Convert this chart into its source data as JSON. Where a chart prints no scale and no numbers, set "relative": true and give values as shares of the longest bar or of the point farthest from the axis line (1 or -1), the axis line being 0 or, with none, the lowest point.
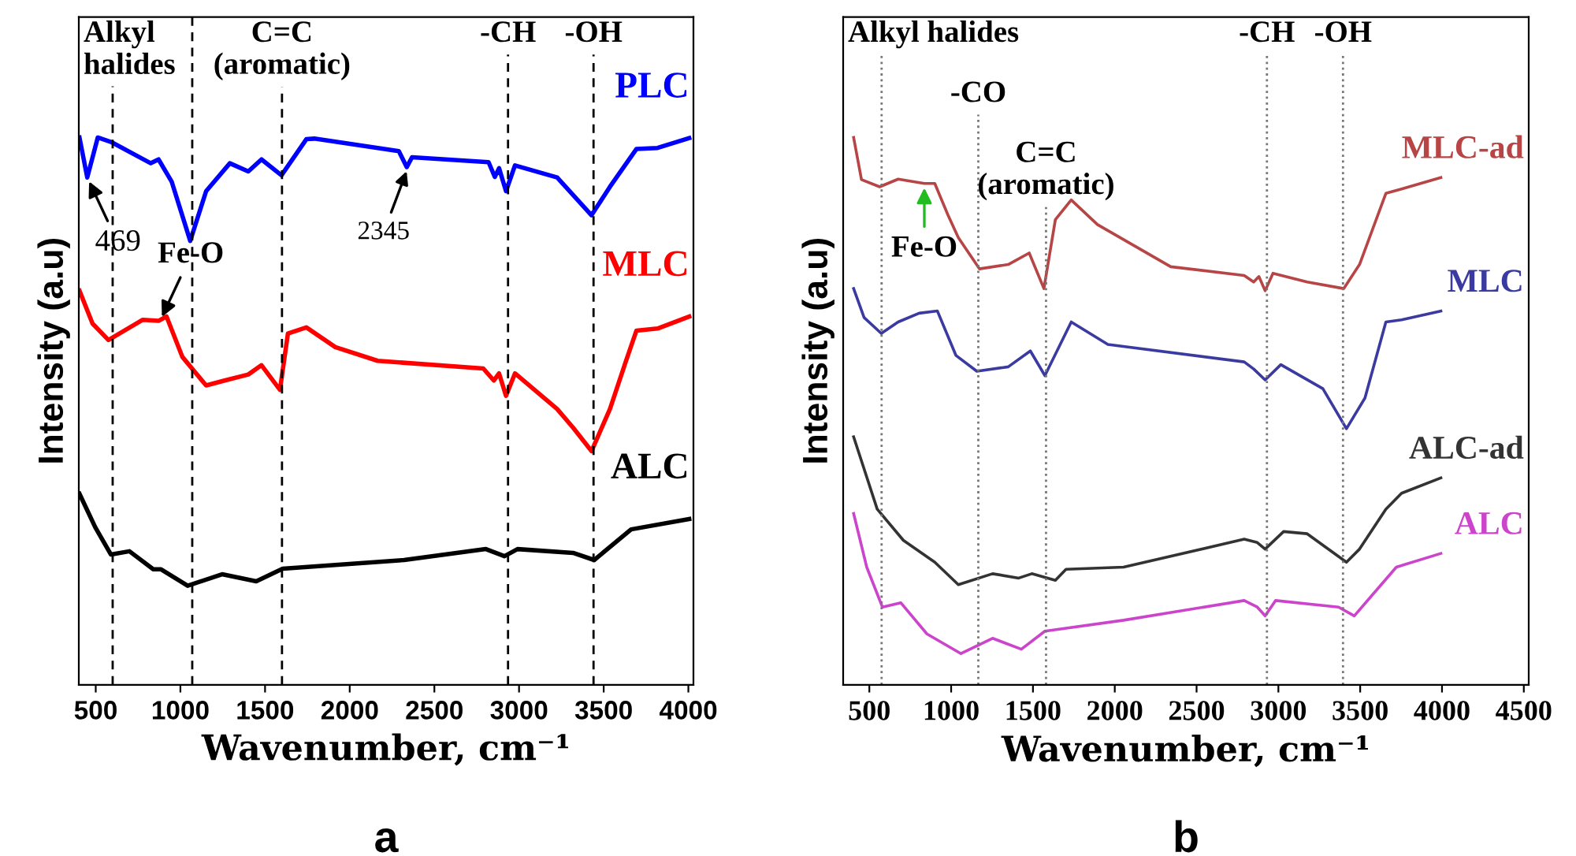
{
  "chart_data": [
    {
      "type": "line",
      "title": "a",
      "xlabel": "Wavenumber, cm⁻¹",
      "ylabel": "Intensity (a.u)",
      "relative": true,
      "tick_labels": "x",
      "grid": false,
      "legend": false,
      "marker": "none",
      "line_style": "solid",
      "xlim": [
        400,
        4030
      ],
      "xticks": [
        500,
        1000,
        1500,
        2000,
        2500,
        3000,
        3500,
        4000
      ],
      "series": [
        {
          "name": "PLC",
          "color": "#0000ff",
          "x": [
            404,
            450,
            512,
            590,
            825,
            871,
            949,
            1058,
            1152,
            1292,
            1401,
            1479,
            1597,
            1744,
            1791,
            2290,
            2337,
            2368,
            2820,
            2857,
            2882,
            2923,
            2976,
            3225,
            3428,
            3537,
            3693,
            3818,
            4005
          ],
          "values": [
            1.0,
            0.927,
            1.0,
            0.992,
            0.953,
            0.96,
            0.919,
            0.811,
            0.902,
            0.953,
            0.938,
            0.96,
            0.931,
            0.997,
            0.998,
            0.975,
            0.946,
            0.964,
            0.955,
            0.928,
            0.944,
            0.902,
            0.949,
            0.927,
            0.858,
            0.91,
            0.979,
            0.981,
            0.999
          ]
        },
        {
          "name": "MLC",
          "color": "#ff0000",
          "x": [
            404,
            481,
            575,
            778,
            871,
            918,
            1012,
            1152,
            1261,
            1401,
            1479,
            1588,
            1635,
            1744,
            1915,
            2165,
            2789,
            2851,
            2882,
            2923,
            2976,
            3225,
            3319,
            3428,
            3537,
            3631,
            3693,
            3818,
            4005
          ],
          "values": [
            0.72,
            0.66,
            0.63,
            0.667,
            0.665,
            0.673,
            0.599,
            0.547,
            0.556,
            0.567,
            0.584,
            0.539,
            0.642,
            0.653,
            0.617,
            0.592,
            0.578,
            0.556,
            0.569,
            0.528,
            0.569,
            0.504,
            0.47,
            0.427,
            0.504,
            0.591,
            0.647,
            0.651,
            0.673
          ]
        },
        {
          "name": "ALC",
          "color": "#000000",
          "x": [
            404,
            497,
            590,
            699,
            840,
            886,
            1043,
            1246,
            1448,
            1604,
            2321,
            2804,
            2914,
            2991,
            3319,
            3444,
            3662,
            4005
          ],
          "values": [
            0.349,
            0.288,
            0.238,
            0.244,
            0.211,
            0.211,
            0.181,
            0.202,
            0.189,
            0.212,
            0.228,
            0.248,
            0.235,
            0.248,
            0.241,
            0.228,
            0.284,
            0.303
          ]
        }
      ],
      "ref_lines": [
        {
          "axis": "x",
          "value": 600,
          "label": "Alkyl\nhalides",
          "color": "#000000",
          "line_style": "dashed"
        },
        {
          "axis": "x",
          "value": 1070,
          "color": "#000000",
          "line_style": "dashed"
        },
        {
          "axis": "x",
          "value": 1600,
          "label": "C=C\n(aromatic)",
          "color": "#000000",
          "line_style": "dashed"
        },
        {
          "axis": "x",
          "value": 2935,
          "label": "-CH",
          "color": "#000000",
          "line_style": "dashed"
        },
        {
          "axis": "x",
          "value": 3440,
          "label": "-OH",
          "color": "#000000",
          "line_style": "dashed"
        }
      ],
      "annotations": [
        {
          "text": "469",
          "x": 450,
          "y": 0.927
        },
        {
          "text": "2345",
          "x": 2345,
          "y": 0.946
        },
        {
          "text": "Fe-O",
          "x": 880,
          "y": 0.665
        }
      ]
    },
    {
      "type": "line",
      "title": "b",
      "xlabel": "Wavenumber, cm⁻¹",
      "ylabel": "Intensity (a.u)",
      "relative": true,
      "tick_labels": "x",
      "grid": false,
      "legend": false,
      "marker": "none",
      "line_style": "solid",
      "xlim": [
        340,
        4530
      ],
      "xticks": [
        500,
        1000,
        1500,
        2000,
        2500,
        3000,
        3500,
        4000,
        4500
      ],
      "series": [
        {
          "name": "MLC-ad",
          "color": "#b84545",
          "x": [
            404,
            452,
            563,
            676,
            836,
            900,
            981,
            1044,
            1173,
            1349,
            1477,
            1567,
            1637,
            1734,
            1894,
            2342,
            2791,
            2849,
            2881,
            2919,
            2967,
            3176,
            3400,
            3496,
            3657,
            3753,
            3993
          ],
          "values": [
            1.0,
            0.923,
            0.91,
            0.924,
            0.916,
            0.916,
            0.858,
            0.817,
            0.76,
            0.768,
            0.789,
            0.724,
            0.85,
            0.886,
            0.841,
            0.764,
            0.748,
            0.736,
            0.746,
            0.72,
            0.752,
            0.736,
            0.724,
            0.768,
            0.898,
            0.906,
            0.927
          ]
        },
        {
          "name": "MLC",
          "color": "#3a3aa0",
          "x": [
            404,
            468,
            573,
            676,
            804,
            916,
            1029,
            1157,
            1349,
            1484,
            1573,
            1734,
            1958,
            2791,
            2849,
            2919,
            3015,
            3272,
            3416,
            3529,
            3657,
            3753,
            3993
          ],
          "values": [
            0.724,
            0.671,
            0.642,
            0.663,
            0.679,
            0.683,
            0.602,
            0.573,
            0.581,
            0.61,
            0.565,
            0.663,
            0.622,
            0.59,
            0.577,
            0.557,
            0.585,
            0.541,
            0.468,
            0.524,
            0.663,
            0.667,
            0.683
          ]
        },
        {
          "name": "ALC-ad",
          "color": "#333333",
          "x": [
            404,
            548,
            708,
            900,
            1044,
            1253,
            1413,
            1493,
            1637,
            1702,
            2054,
            2791,
            2871,
            2919,
            3032,
            3176,
            3416,
            3496,
            3657,
            3753,
            3993
          ],
          "values": [
            0.453,
            0.321,
            0.264,
            0.224,
            0.183,
            0.203,
            0.195,
            0.203,
            0.191,
            0.211,
            0.215,
            0.266,
            0.26,
            0.248,
            0.28,
            0.276,
            0.224,
            0.248,
            0.321,
            0.35,
            0.378
          ]
        },
        {
          "name": "ALC",
          "color": "#cc44cc",
          "x": [
            404,
            484,
            580,
            692,
            852,
            1060,
            1253,
            1429,
            1573,
            2054,
            2791,
            2871,
            2919,
            2983,
            3368,
            3464,
            3721,
            3993
          ],
          "values": [
            0.313,
            0.215,
            0.142,
            0.15,
            0.093,
            0.057,
            0.085,
            0.065,
            0.098,
            0.118,
            0.154,
            0.142,
            0.126,
            0.154,
            0.142,
            0.126,
            0.215,
            0.24
          ]
        }
      ],
      "ref_lines": [
        {
          "axis": "x",
          "value": 575,
          "label": "Alkyl halides",
          "color": "#777777",
          "line_style": "dotted"
        },
        {
          "axis": "x",
          "value": 1166,
          "label": "-CO",
          "color": "#777777",
          "line_style": "dotted"
        },
        {
          "axis": "x",
          "value": 1580,
          "label": "C=C\n(aromatic)",
          "color": "#777777",
          "line_style": "dotted"
        },
        {
          "axis": "x",
          "value": 2930,
          "label": "-CH",
          "color": "#777777",
          "line_style": "dotted"
        },
        {
          "axis": "x",
          "value": 3395,
          "label": "-OH",
          "color": "#777777",
          "line_style": "dotted"
        }
      ],
      "annotations": [
        {
          "text": "Fe-O",
          "x": 836,
          "y": 0.916
        }
      ]
    }
  ]
}
